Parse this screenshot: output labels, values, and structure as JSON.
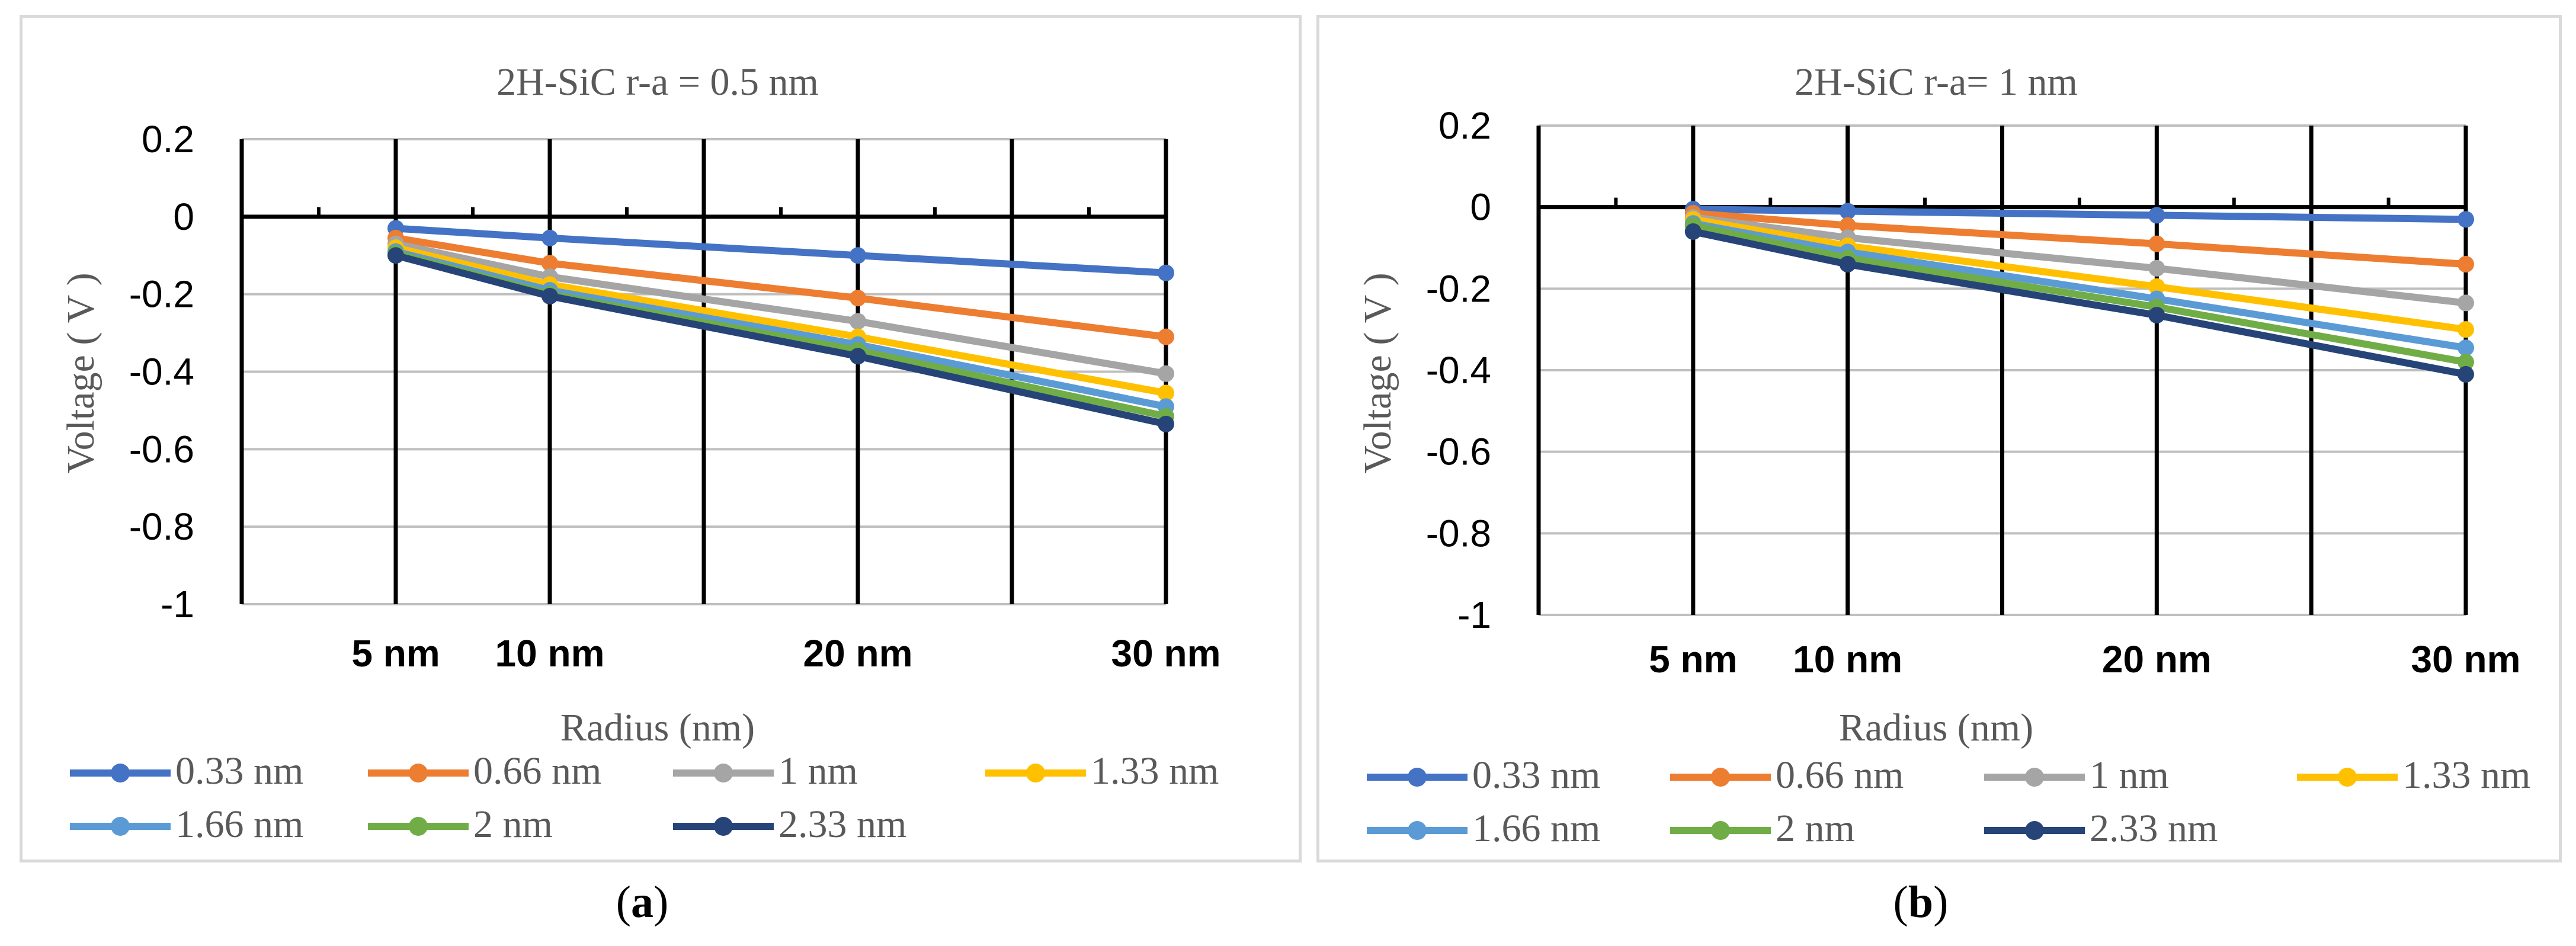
{
  "captions": {
    "a": "a",
    "b": "b"
  },
  "chart_data": [
    {
      "type": "line",
      "title": "2H-SiC   r-a =  0.5 nm",
      "xlabel": "Radius (nm)",
      "ylabel": "Voltage ( V )",
      "categories": [
        "5 nm",
        "10 nm",
        "20 nm",
        "30 nm"
      ],
      "x": [
        5,
        10,
        20,
        30
      ],
      "ylim": [
        -1,
        0.2
      ],
      "yticks": [
        "0.2",
        "0",
        "-0.2",
        "-0.4",
        "-0.6",
        "-0.8",
        "-1"
      ],
      "legend_position": "bottom",
      "series": [
        {
          "name": "0.33 nm",
          "color": "#4472C4",
          "values": [
            -0.03,
            -0.055,
            -0.1,
            -0.145
          ]
        },
        {
          "name": "0.66 nm",
          "color": "#ED7D31",
          "values": [
            -0.055,
            -0.12,
            -0.21,
            -0.31
          ]
        },
        {
          "name": "1 nm",
          "color": "#A5A5A5",
          "values": [
            -0.07,
            -0.155,
            -0.27,
            -0.405
          ]
        },
        {
          "name": "1.33 nm",
          "color": "#FFC000",
          "values": [
            -0.08,
            -0.175,
            -0.31,
            -0.455
          ]
        },
        {
          "name": "1.66 nm",
          "color": "#5B9BD5",
          "values": [
            -0.09,
            -0.19,
            -0.33,
            -0.49
          ]
        },
        {
          "name": "2 nm",
          "color": "#70AD47",
          "values": [
            -0.095,
            -0.2,
            -0.345,
            -0.515
          ]
        },
        {
          "name": "2.33 nm",
          "color": "#264478",
          "values": [
            -0.1,
            -0.205,
            -0.36,
            -0.535
          ]
        }
      ]
    },
    {
      "type": "line",
      "title": "2H-SiC  r-a= 1 nm",
      "xlabel": "Radius (nm)",
      "ylabel": "Voltage ( V )",
      "categories": [
        "5 nm",
        "10 nm",
        "20 nm",
        "30 nm"
      ],
      "x": [
        5,
        10,
        20,
        30
      ],
      "ylim": [
        -1,
        0.2
      ],
      "yticks": [
        "0.2",
        "0",
        "-0.2",
        "-0.4",
        "-0.6",
        "-0.8",
        "-1"
      ],
      "legend_position": "bottom",
      "series": [
        {
          "name": "0.33 nm",
          "color": "#4472C4",
          "values": [
            -0.005,
            -0.01,
            -0.02,
            -0.03
          ]
        },
        {
          "name": "0.66 nm",
          "color": "#ED7D31",
          "values": [
            -0.015,
            -0.045,
            -0.09,
            -0.14
          ]
        },
        {
          "name": "1 nm",
          "color": "#A5A5A5",
          "values": [
            -0.025,
            -0.075,
            -0.15,
            -0.235
          ]
        },
        {
          "name": "1.33 nm",
          "color": "#FFC000",
          "values": [
            -0.03,
            -0.095,
            -0.195,
            -0.3
          ]
        },
        {
          "name": "1.66 nm",
          "color": "#5B9BD5",
          "values": [
            -0.04,
            -0.11,
            -0.225,
            -0.345
          ]
        },
        {
          "name": "2 nm",
          "color": "#70AD47",
          "values": [
            -0.045,
            -0.125,
            -0.245,
            -0.38
          ]
        },
        {
          "name": "2.33 nm",
          "color": "#264478",
          "values": [
            -0.06,
            -0.14,
            -0.265,
            -0.41
          ]
        }
      ]
    }
  ]
}
